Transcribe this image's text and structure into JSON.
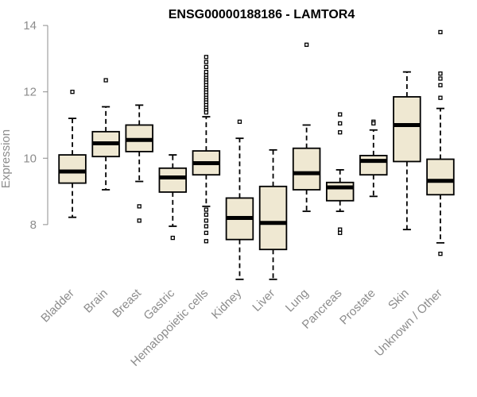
{
  "chart_data": {
    "type": "boxplot",
    "title": "ENSG00000188186 - LAMTOR4",
    "xlabel": "",
    "ylabel": "Expression",
    "ylim": [
      6.25,
      14.05
    ],
    "yticks": [
      8,
      10,
      12,
      14
    ],
    "box_fill": "#efe8d2",
    "median_color": "#000000",
    "categories": [
      "Bladder",
      "Brain",
      "Breast",
      "Gastric",
      "Hematopoietic cells",
      "Kidney",
      "Liver",
      "Lung",
      "Pancreas",
      "Prostate",
      "Skin",
      "Unknown / Other"
    ],
    "boxes": [
      {
        "name": "Bladder",
        "whisker_low": 8.22,
        "q1": 9.25,
        "median": 9.6,
        "q3": 10.1,
        "whisker_high": 11.2,
        "outliers": [
          12.0
        ]
      },
      {
        "name": "Brain",
        "whisker_low": 9.05,
        "q1": 10.05,
        "median": 10.45,
        "q3": 10.8,
        "whisker_high": 11.55,
        "outliers": [
          12.35
        ]
      },
      {
        "name": "Breast",
        "whisker_low": 9.3,
        "q1": 10.2,
        "median": 10.55,
        "q3": 11.0,
        "whisker_high": 11.6,
        "outliers": [
          8.55,
          8.12
        ]
      },
      {
        "name": "Gastric",
        "whisker_low": 7.95,
        "q1": 8.98,
        "median": 9.42,
        "q3": 9.7,
        "whisker_high": 10.1,
        "outliers": [
          7.6
        ]
      },
      {
        "name": "Hematopoietic cells",
        "whisker_low": 8.55,
        "q1": 9.5,
        "median": 9.85,
        "q3": 10.22,
        "whisker_high": 11.25,
        "outliers": [
          13.05,
          12.9,
          12.75,
          12.6,
          12.5,
          12.42,
          12.35,
          12.28,
          12.2,
          12.12,
          12.05,
          11.98,
          11.9,
          11.82,
          11.75,
          11.68,
          11.6,
          11.52,
          11.45,
          11.38,
          8.45,
          8.3,
          8.12,
          7.95,
          7.75,
          7.5
        ]
      },
      {
        "name": "Kidney",
        "whisker_low": 6.35,
        "q1": 7.55,
        "median": 8.2,
        "q3": 8.8,
        "whisker_high": 10.6,
        "outliers": [
          11.1
        ]
      },
      {
        "name": "Liver",
        "whisker_low": 6.35,
        "q1": 7.25,
        "median": 8.05,
        "q3": 9.15,
        "whisker_high": 10.25,
        "outliers": []
      },
      {
        "name": "Lung",
        "whisker_low": 8.4,
        "q1": 9.05,
        "median": 9.55,
        "q3": 10.3,
        "whisker_high": 11.0,
        "outliers": [
          13.42
        ]
      },
      {
        "name": "Pancreas",
        "whisker_low": 8.4,
        "q1": 8.72,
        "median": 9.12,
        "q3": 9.27,
        "whisker_high": 9.65,
        "outliers": [
          11.32,
          11.05,
          10.78,
          7.85,
          7.75
        ]
      },
      {
        "name": "Prostate",
        "whisker_low": 8.85,
        "q1": 9.5,
        "median": 9.92,
        "q3": 10.08,
        "whisker_high": 10.85,
        "outliers": [
          11.1,
          11.05
        ]
      },
      {
        "name": "Skin",
        "whisker_low": 7.85,
        "q1": 9.9,
        "median": 11.0,
        "q3": 11.85,
        "whisker_high": 12.6,
        "outliers": []
      },
      {
        "name": "Unknown / Other",
        "whisker_low": 7.45,
        "q1": 8.9,
        "median": 9.32,
        "q3": 9.97,
        "whisker_high": 11.5,
        "outliers": [
          13.8,
          12.55,
          12.4,
          12.2,
          11.82,
          7.12
        ]
      }
    ]
  }
}
